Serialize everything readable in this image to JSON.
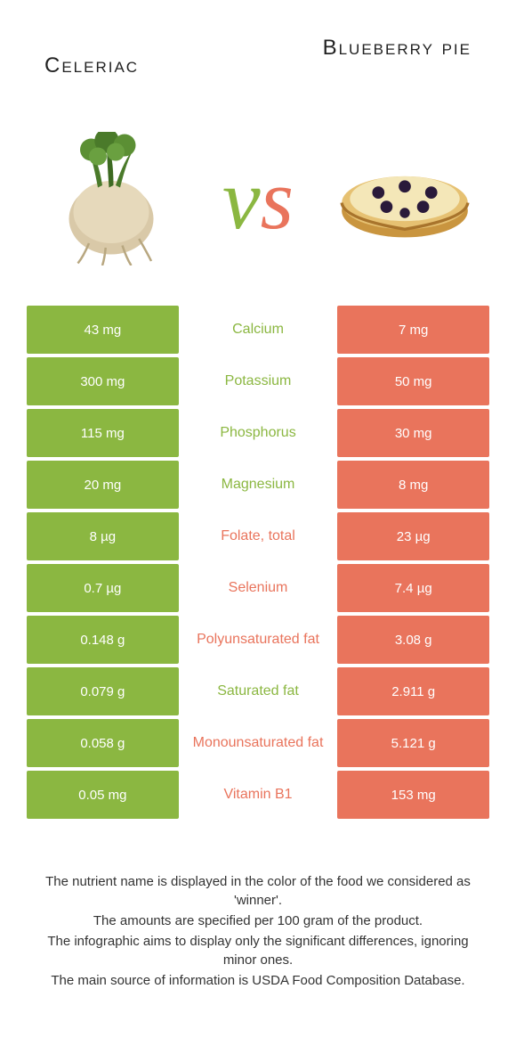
{
  "colors": {
    "left_food": "#8bb741",
    "right_food": "#e9745c",
    "background": "#ffffff",
    "text": "#333333"
  },
  "foods": {
    "left": {
      "name": "Celeriac"
    },
    "right": {
      "name": "Blueberry pie"
    }
  },
  "vs_label": {
    "v": "v",
    "s": "s"
  },
  "rows": [
    {
      "label": "Calcium",
      "left": "43 mg",
      "right": "7 mg",
      "winner": "left"
    },
    {
      "label": "Potassium",
      "left": "300 mg",
      "right": "50 mg",
      "winner": "left"
    },
    {
      "label": "Phosphorus",
      "left": "115 mg",
      "right": "30 mg",
      "winner": "left"
    },
    {
      "label": "Magnesium",
      "left": "20 mg",
      "right": "8 mg",
      "winner": "left"
    },
    {
      "label": "Folate, total",
      "left": "8 µg",
      "right": "23 µg",
      "winner": "right"
    },
    {
      "label": "Selenium",
      "left": "0.7 µg",
      "right": "7.4 µg",
      "winner": "right"
    },
    {
      "label": "Polyunsaturated fat",
      "left": "0.148 g",
      "right": "3.08 g",
      "winner": "right"
    },
    {
      "label": "Saturated fat",
      "left": "0.079 g",
      "right": "2.911 g",
      "winner": "left"
    },
    {
      "label": "Monounsaturated fat",
      "left": "0.058 g",
      "right": "5.121 g",
      "winner": "right"
    },
    {
      "label": "Vitamin B1",
      "left": "0.05 mg",
      "right": "153 mg",
      "winner": "right"
    }
  ],
  "footnotes": [
    "The nutrient name is displayed in the color of the food we considered as 'winner'.",
    "The amounts are specified per 100 gram of the product.",
    "The infographic aims to display only the significant differences, ignoring minor ones.",
    "The main source of information is USDA Food Composition Database."
  ]
}
